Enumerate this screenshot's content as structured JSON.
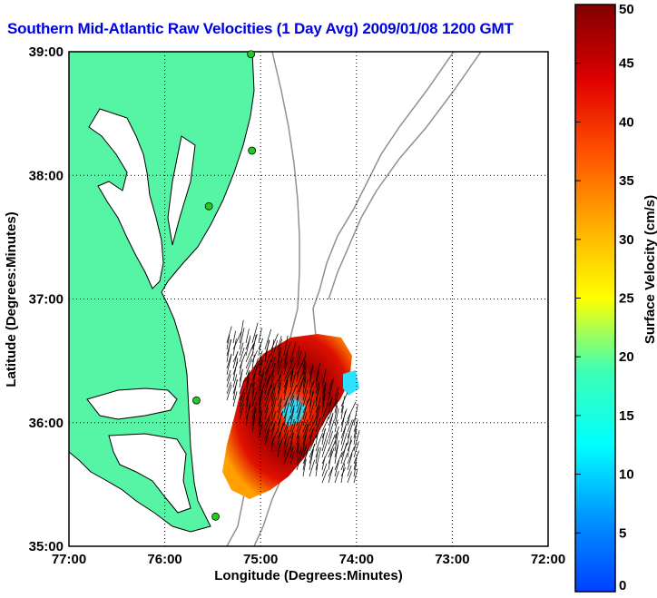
{
  "title": "Southern Mid-Atlantic Raw Velocities (1 Day Avg) 2009/01/08 1200 GMT",
  "x_axis": {
    "label": "Longitude (Degrees:Minutes)",
    "ticks": [
      "77:00",
      "76:00",
      "75:00",
      "74:00",
      "73:00",
      "72:00"
    ]
  },
  "y_axis": {
    "label": "Latitude (Degrees:Minutes)",
    "ticks": [
      "39:00",
      "38:00",
      "37:00",
      "36:00",
      "35:00"
    ]
  },
  "colorbar": {
    "label": "Surface Velocity (cm/s)",
    "ticks": [
      "0",
      "5",
      "10",
      "15",
      "20",
      "25",
      "30",
      "35",
      "40",
      "45",
      "50"
    ],
    "range": [
      0,
      50
    ],
    "colormap": "jet"
  },
  "colors": {
    "land": "#55f5a5",
    "land_outline": "#000000",
    "bathymetry": "#909090",
    "station": "#22cc22",
    "title": "#0000e0"
  },
  "map_extent": {
    "lon": [
      -77,
      -72
    ],
    "lat": [
      35,
      39
    ]
  },
  "grid": "dotted",
  "stations": [
    {
      "lon": -75.1,
      "lat": 38.98
    },
    {
      "lon": -75.09,
      "lat": 38.2
    },
    {
      "lon": -75.54,
      "lat": 37.75
    },
    {
      "lon": -75.67,
      "lat": 36.18
    },
    {
      "lon": -75.47,
      "lat": 35.24
    }
  ]
}
